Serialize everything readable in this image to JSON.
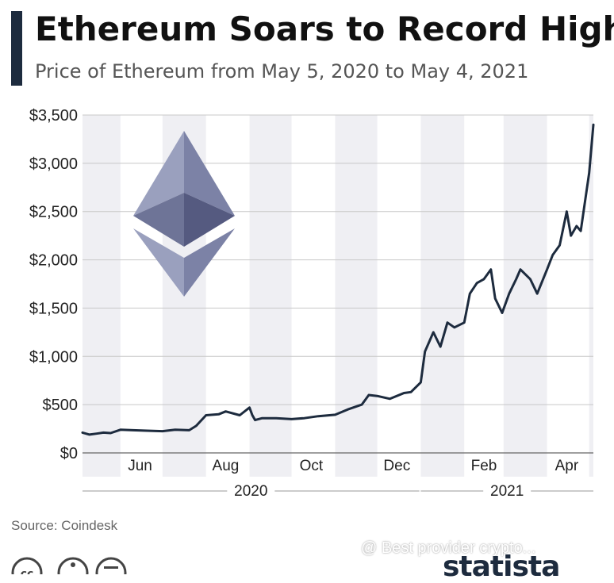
{
  "header": {
    "title": "Ethereum Soars to Record High",
    "subtitle": "Price of Ethereum from May 5, 2020 to May 4, 2021"
  },
  "footer": {
    "source": "Source: Coindesk",
    "watermark": "@ Best provider crypto...",
    "brand": "statista"
  },
  "icons": [
    "ethereum-logo-icon",
    "creative-commons-icon",
    "attribution-icon",
    "equals-icon",
    "statista-logo-icon"
  ],
  "colors": {
    "line": "#1d2b3e",
    "band": "#efeff3",
    "grid": "#c8c8c8",
    "logo_light": "#9aa0be",
    "logo_dark": "#5a5f85"
  },
  "chart_data": {
    "type": "line",
    "title": "Ethereum Soars to Record High",
    "subtitle": "Price of Ethereum from May 5, 2020 to May 4, 2021",
    "xlabel": "",
    "ylabel": "",
    "x_range": [
      "2020-05-05",
      "2021-05-04"
    ],
    "ylim": [
      0,
      3500
    ],
    "yticks": [
      0,
      500,
      1000,
      1500,
      2000,
      2500,
      3000,
      3500
    ],
    "ytick_labels": [
      "$0",
      "$500",
      "$1,000",
      "$1,500",
      "$2,000",
      "$2,500",
      "$3,000",
      "$3,500"
    ],
    "month_ticks": [
      {
        "date": "2020-06-15",
        "label": "Jun"
      },
      {
        "date": "2020-08-15",
        "label": "Aug"
      },
      {
        "date": "2020-10-15",
        "label": "Oct"
      },
      {
        "date": "2020-12-15",
        "label": "Dec"
      },
      {
        "date": "2021-02-15",
        "label": "Feb"
      },
      {
        "date": "2021-04-15",
        "label": "Apr"
      }
    ],
    "year_groups": [
      {
        "label": "2020",
        "start": "2020-05-05",
        "end": "2020-12-31"
      },
      {
        "label": "2021",
        "start": "2021-01-01",
        "end": "2021-05-04"
      }
    ],
    "grid": true,
    "legend": "none",
    "series": [
      {
        "x": [
          "2020-05-05",
          "2020-05-10",
          "2020-05-15",
          "2020-05-20",
          "2020-05-25",
          "2020-06-01",
          "2020-06-10",
          "2020-06-20",
          "2020-07-01",
          "2020-07-10",
          "2020-07-20",
          "2020-07-25",
          "2020-08-01",
          "2020-08-10",
          "2020-08-15",
          "2020-08-25",
          "2020-09-01",
          "2020-09-03",
          "2020-09-05",
          "2020-09-10",
          "2020-09-20",
          "2020-10-01",
          "2020-10-10",
          "2020-10-20",
          "2020-11-01",
          "2020-11-10",
          "2020-11-20",
          "2020-11-25",
          "2020-12-01",
          "2020-12-10",
          "2020-12-20",
          "2020-12-25",
          "2021-01-01",
          "2021-01-04",
          "2021-01-10",
          "2021-01-15",
          "2021-01-20",
          "2021-01-25",
          "2021-02-01",
          "2021-02-05",
          "2021-02-10",
          "2021-02-15",
          "2021-02-20",
          "2021-02-23",
          "2021-02-28",
          "2021-03-05",
          "2021-03-10",
          "2021-03-13",
          "2021-03-20",
          "2021-03-25",
          "2021-04-01",
          "2021-04-05",
          "2021-04-10",
          "2021-04-15",
          "2021-04-18",
          "2021-04-22",
          "2021-04-25",
          "2021-04-28",
          "2021-05-01",
          "2021-05-04"
        ],
        "values": [
          210,
          190,
          200,
          210,
          205,
          240,
          235,
          230,
          225,
          240,
          235,
          280,
          390,
          400,
          430,
          390,
          470,
          390,
          340,
          360,
          360,
          350,
          360,
          380,
          395,
          450,
          500,
          600,
          590,
          560,
          620,
          630,
          730,
          1050,
          1250,
          1100,
          1350,
          1300,
          1350,
          1650,
          1760,
          1800,
          1900,
          1600,
          1450,
          1650,
          1800,
          1900,
          1800,
          1650,
          1900,
          2050,
          2150,
          2500,
          2250,
          2350,
          2300,
          2600,
          2900,
          3400
        ]
      }
    ]
  }
}
